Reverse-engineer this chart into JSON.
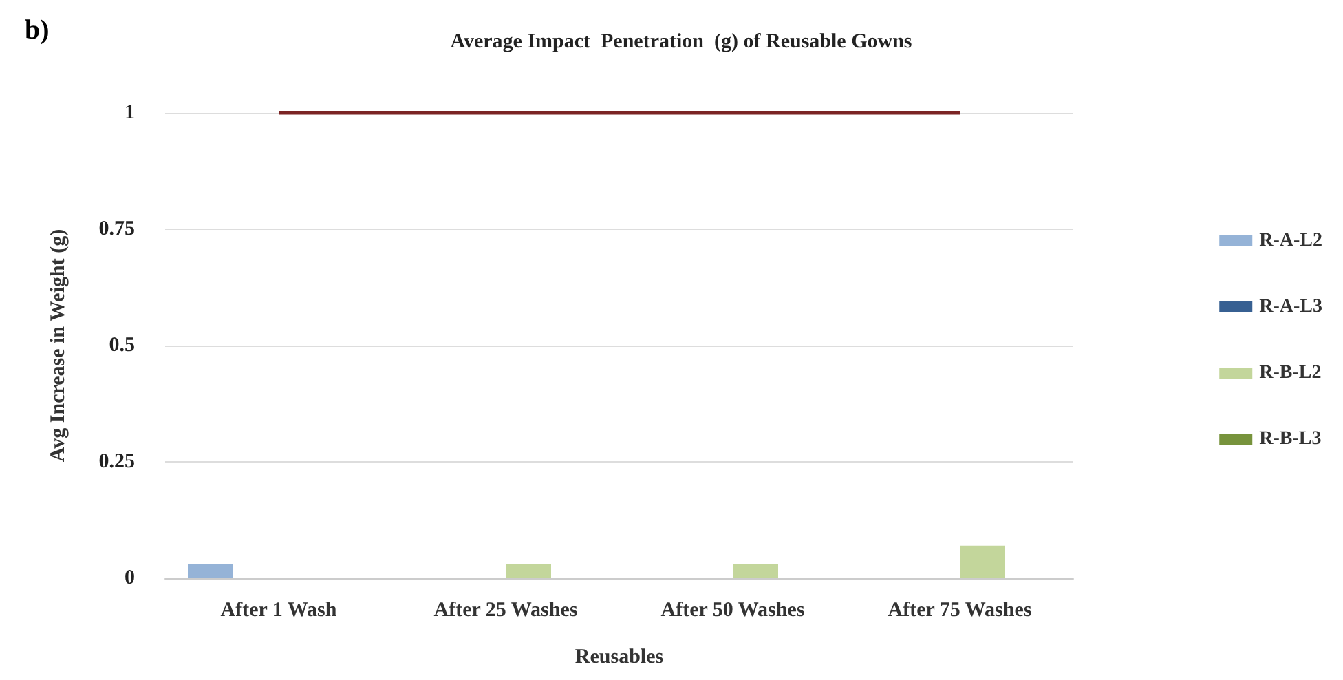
{
  "chart_data": {
    "type": "bar",
    "title": "Average Impact  Penetration  (g) of Reusable Gowns",
    "xlabel": "Reusables",
    "ylabel": "Avg Increase in Weight (g)",
    "annotations": [
      "b)"
    ],
    "categories": [
      "After 1 Wash",
      "After 25 Washes",
      "After 50 Washes",
      "After 75 Washes"
    ],
    "series": [
      {
        "name": "R-A-L2",
        "color": "#95b3d7",
        "values": [
          0.03,
          0,
          0,
          0
        ]
      },
      {
        "name": "R-A-L3",
        "color": "#376092",
        "values": [
          0,
          0,
          0,
          0
        ]
      },
      {
        "name": "R-B-L2",
        "color": "#c3d69b",
        "values": [
          0,
          0.03,
          0.03,
          0.07
        ]
      },
      {
        "name": "R-B-L3",
        "color": "#77933c",
        "values": [
          0,
          0,
          0,
          0
        ]
      },
      {
        "type": "line",
        "color": "#7b2424",
        "values": [
          1,
          1,
          1,
          1
        ]
      }
    ],
    "ylim": [
      0,
      1
    ],
    "yticks": [
      0,
      0.25,
      0.5,
      0.75,
      1
    ],
    "grid": "y",
    "legend": "right",
    "marker": "none"
  }
}
